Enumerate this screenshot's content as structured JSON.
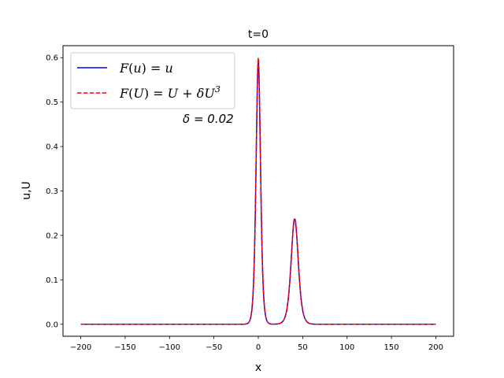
{
  "chart_data": {
    "type": "line",
    "title": "t=0",
    "xlabel": "x",
    "ylabel": "u,U",
    "xlim": [
      -220,
      220
    ],
    "ylim": [
      -0.027,
      0.627
    ],
    "xticks": [
      -200,
      -150,
      -100,
      -50,
      0,
      50,
      100,
      150,
      200
    ],
    "xtick_labels": [
      "−200",
      "−150",
      "−100",
      "−50",
      "0",
      "50",
      "100",
      "150",
      "200"
    ],
    "yticks": [
      0.0,
      0.1,
      0.2,
      0.3,
      0.4,
      0.5,
      0.6
    ],
    "ytick_labels": [
      "0.0",
      "0.1",
      "0.2",
      "0.3",
      "0.4",
      "0.5",
      "0.6"
    ],
    "grid": false,
    "legend_position": "top-left",
    "x_range": [
      -200,
      200
    ],
    "series": [
      {
        "name": "F(u) = u",
        "color": "#0000ff",
        "style": "solid",
        "peaks": [
          {
            "center": 0,
            "amplitude": 0.59,
            "half_width": 3.4
          },
          {
            "center": 41,
            "amplitude": 0.237,
            "half_width": 5.4
          }
        ]
      },
      {
        "name": "F(U) = U + δU³",
        "color": "#ff0000",
        "style": "dashed",
        "peaks": [
          {
            "center": 0,
            "amplitude": 0.6,
            "half_width": 3.4
          },
          {
            "center": 41,
            "amplitude": 0.239,
            "half_width": 5.4
          }
        ]
      }
    ],
    "legend": [
      {
        "parts": [
          "F",
          "(",
          "u",
          ") = ",
          "u"
        ]
      },
      {
        "parts": [
          "F",
          "(",
          "U",
          ") = ",
          "U",
          " + δU",
          "3"
        ]
      }
    ],
    "annotation": "δ = 0.02"
  }
}
